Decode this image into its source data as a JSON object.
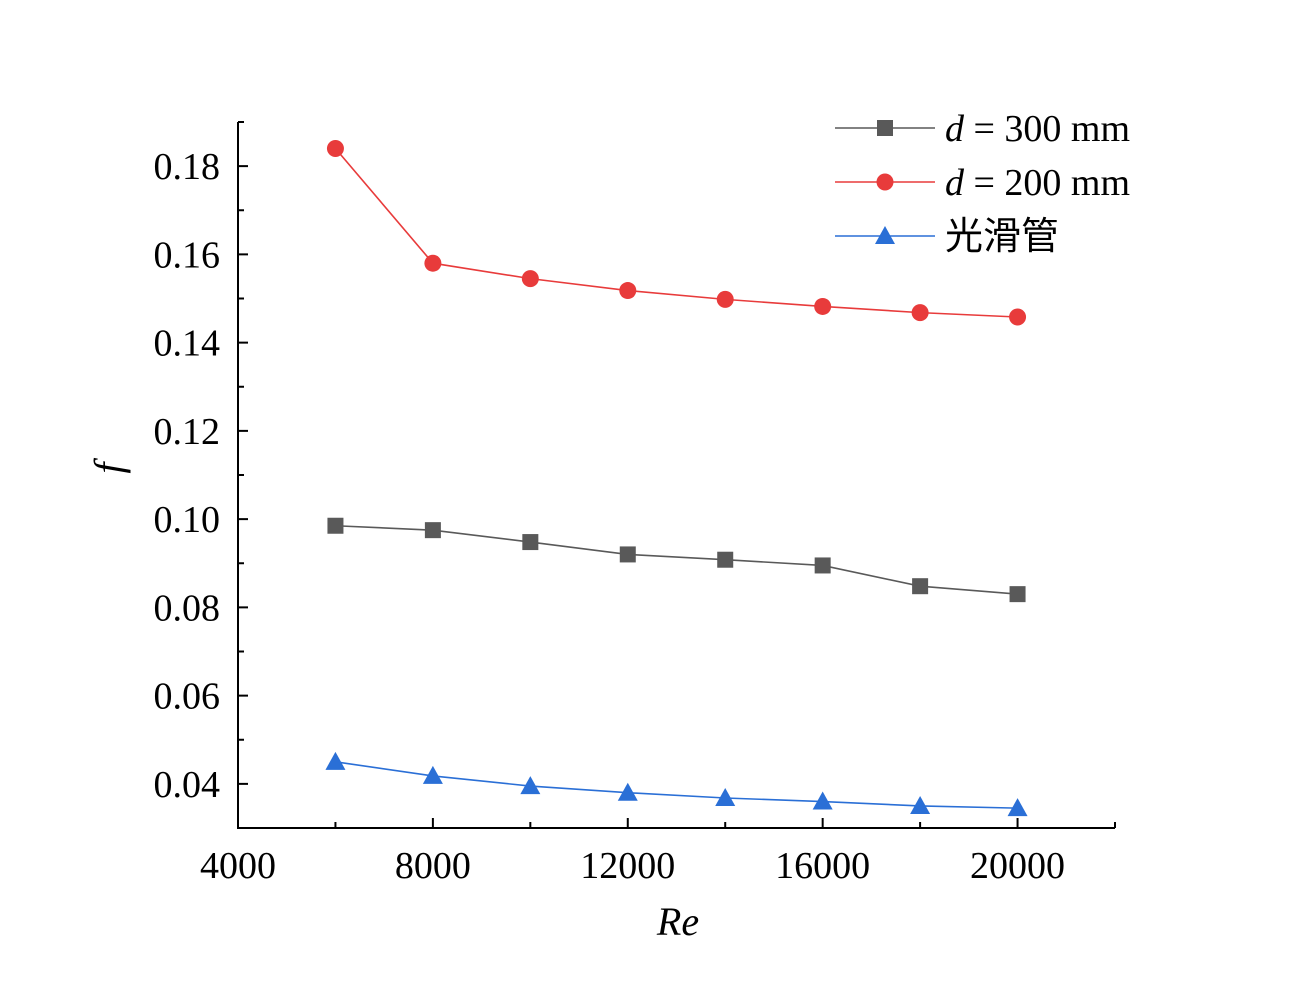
{
  "chart_data": {
    "type": "line",
    "title": "",
    "xlabel": "Re",
    "ylabel": "f",
    "xlim": [
      4000,
      22000
    ],
    "ylim": [
      0.03,
      0.19
    ],
    "xticks": [
      4000,
      8000,
      12000,
      16000,
      20000
    ],
    "xtick_labels": [
      "4000",
      "8000",
      "12000",
      "16000",
      "20000"
    ],
    "yticks": [
      0.04,
      0.06,
      0.08,
      0.1,
      0.12,
      0.14,
      0.16,
      0.18
    ],
    "ytick_labels": [
      "0.04",
      "0.06",
      "0.08",
      "0.10",
      "0.12",
      "0.14",
      "0.16",
      "0.18"
    ],
    "grid": false,
    "legend_position": "top-right",
    "x": [
      6000,
      8000,
      10000,
      12000,
      14000,
      16000,
      18000,
      20000
    ],
    "series": [
      {
        "legend_var": "d",
        "legend_rest": " = 300 mm",
        "marker": "square",
        "color": "#595959",
        "values": [
          0.0985,
          0.0975,
          0.0948,
          0.092,
          0.0908,
          0.0895,
          0.0848,
          0.083
        ]
      },
      {
        "legend_var": "d",
        "legend_rest": " = 200 mm",
        "marker": "circle",
        "color": "#e83b3b",
        "values": [
          0.184,
          0.158,
          0.1545,
          0.1518,
          0.1498,
          0.1482,
          0.1468,
          0.1458
        ]
      },
      {
        "legend_var": "",
        "legend_rest": "光滑管",
        "marker": "triangle",
        "color": "#2a6fd6",
        "values": [
          0.045,
          0.0418,
          0.0395,
          0.038,
          0.0368,
          0.036,
          0.035,
          0.0345
        ]
      }
    ]
  }
}
